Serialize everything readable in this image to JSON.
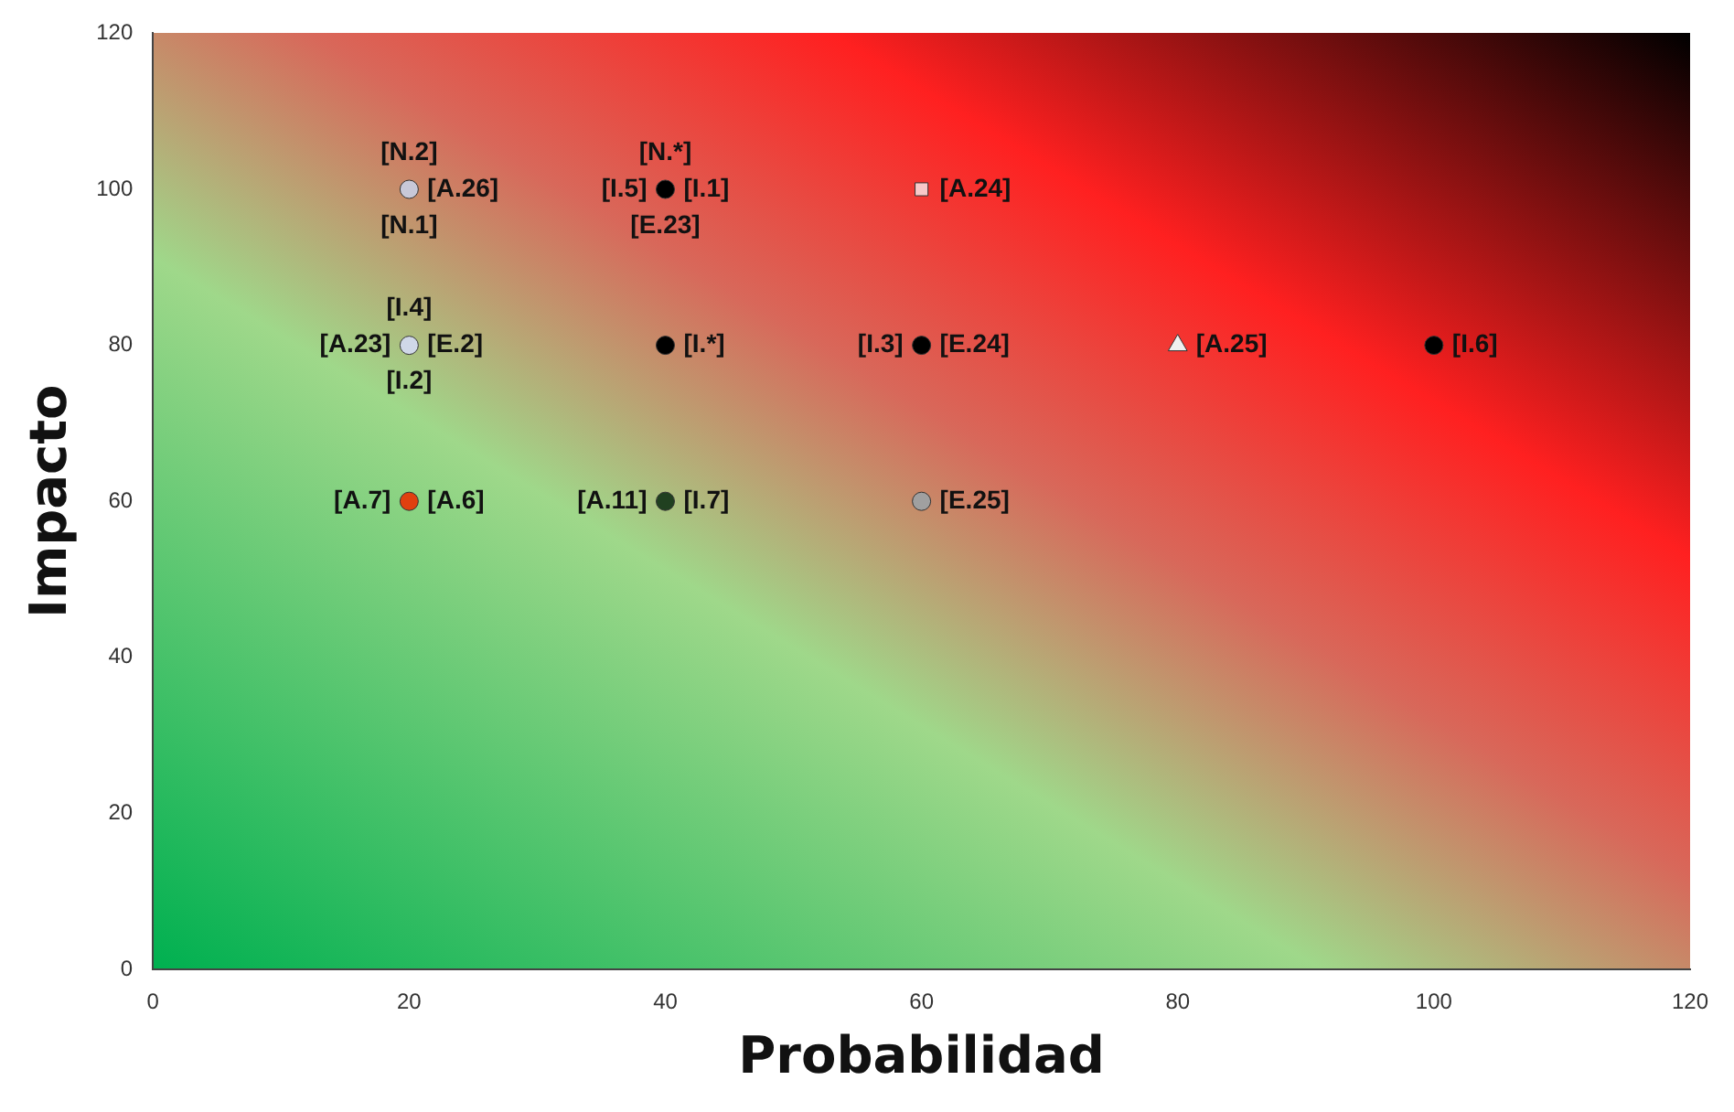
{
  "chart_data": {
    "type": "scatter",
    "xlabel": "Probabilidad",
    "ylabel": "Impacto",
    "xlim": [
      0,
      120
    ],
    "ylim": [
      0,
      120
    ],
    "xticks": [
      0,
      20,
      40,
      60,
      80,
      100,
      120
    ],
    "yticks": [
      0,
      20,
      40,
      60,
      80,
      100,
      120
    ],
    "grid": false,
    "legend": false,
    "series": [
      {
        "marker": "circle",
        "x": [
          20,
          40,
          20,
          40,
          60,
          100,
          20,
          40,
          60
        ],
        "values": [
          100,
          100,
          80,
          80,
          80,
          80,
          60,
          60,
          60
        ],
        "colors": [
          "#c8c8d8",
          "#000000",
          "#d0d8e8",
          "#000000",
          "#000000",
          "#000000",
          "#e04010",
          "#204020",
          "#a0a0a0"
        ]
      },
      {
        "marker": "square",
        "x": [
          60
        ],
        "values": [
          100
        ],
        "color": "#f8c8c8"
      },
      {
        "marker": "triangle",
        "x": [
          80
        ],
        "values": [
          80
        ],
        "color": "#f0f0f0"
      }
    ],
    "annotations": [
      {
        "text": "[N.2]",
        "x": 20,
        "y": 100
      },
      {
        "text": "[A.26]",
        "x": 20,
        "y": 100
      },
      {
        "text": "[N.1]",
        "x": 20,
        "y": 100
      },
      {
        "text": "[N.*]",
        "x": 40,
        "y": 100
      },
      {
        "text": "[I.5]",
        "x": 40,
        "y": 100
      },
      {
        "text": "[I.1]",
        "x": 40,
        "y": 100
      },
      {
        "text": "[E.23]",
        "x": 40,
        "y": 100
      },
      {
        "text": "[A.24]",
        "x": 60,
        "y": 100
      },
      {
        "text": "[I.4]",
        "x": 20,
        "y": 80
      },
      {
        "text": "[A.23]",
        "x": 20,
        "y": 80
      },
      {
        "text": "[E.2]",
        "x": 20,
        "y": 80
      },
      {
        "text": "[I.2]",
        "x": 20,
        "y": 80
      },
      {
        "text": "[I.*]",
        "x": 40,
        "y": 80
      },
      {
        "text": "[I.3]",
        "x": 60,
        "y": 80
      },
      {
        "text": "[E.24]",
        "x": 60,
        "y": 80
      },
      {
        "text": "[A.25]",
        "x": 80,
        "y": 80
      },
      {
        "text": "[I.6]",
        "x": 100,
        "y": 80
      },
      {
        "text": "[A.7]",
        "x": 20,
        "y": 60
      },
      {
        "text": "[A.6]",
        "x": 20,
        "y": 60
      },
      {
        "text": "[A.11]",
        "x": 40,
        "y": 60
      },
      {
        "text": "[I.7]",
        "x": 40,
        "y": 60
      },
      {
        "text": "[E.25]",
        "x": 60,
        "y": 60
      }
    ]
  }
}
